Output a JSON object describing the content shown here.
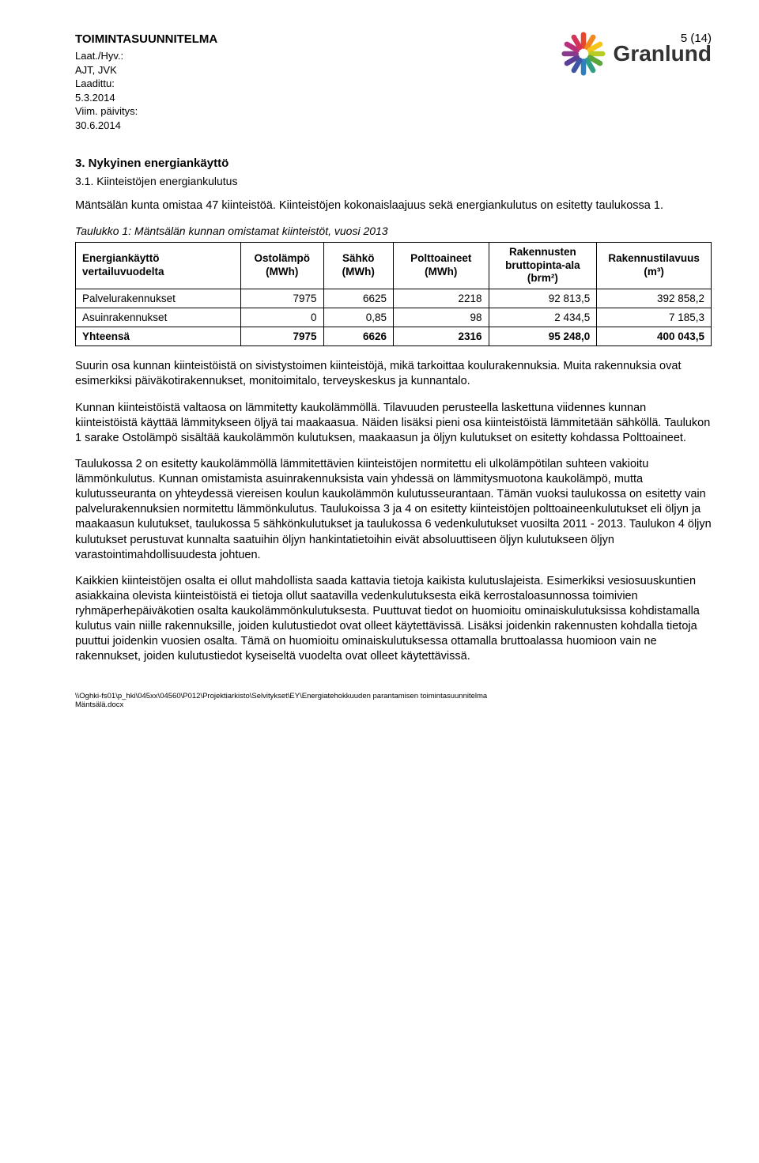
{
  "header": {
    "doc_title": "TOIMINTASUUNNITELMA",
    "meta_lines": [
      "Laat./Hyv.:",
      "AJT, JVK",
      "Laadittu:",
      "5.3.2014",
      "Viim. päivitys:",
      "30.6.2014"
    ],
    "page_number": "5 (14)",
    "brand": "Granlund"
  },
  "logo": {
    "stroke_colors": [
      "#e8452d",
      "#f08a1d",
      "#f6c515",
      "#b8cb27",
      "#5aa63a",
      "#2f9e83",
      "#2f7fbf",
      "#3c55a5",
      "#5a3f97",
      "#8a3a8c",
      "#b9307a",
      "#d53459"
    ]
  },
  "section": {
    "num_title": "3.    Nykyinen energiankäyttö",
    "sub_title": "3.1.  Kiinteistöjen energiankulutus"
  },
  "para1": "Mäntsälän kunta omistaa 47 kiinteistöä. Kiinteistöjen kokonaislaajuus sekä energiankulutus on esitetty taulukossa 1.",
  "table_caption": "Taulukko 1: Mäntsälän kunnan omistamat kiinteistöt, vuosi 2013",
  "table": {
    "headers": [
      "Energiankäyttö vertailuvuodelta",
      "Ostolämpö (MWh)",
      "Sähkö (MWh)",
      "Polttoaineet (MWh)",
      "Rakennusten bruttopinta-ala (brm²)",
      "Rakennustilavuus (m³)"
    ],
    "rows": [
      {
        "label": "Palvelurakennukset",
        "c1": "7975",
        "c2": "6625",
        "c3": "2218",
        "c4": "92 813,5",
        "c5": "392 858,2"
      },
      {
        "label": "Asuinrakennukset",
        "c1": "0",
        "c2": "0,85",
        "c3": "98",
        "c4": "2 434,5",
        "c5": "7 185,3"
      },
      {
        "label": "Yhteensä",
        "c1": "7975",
        "c2": "6626",
        "c3": "2316",
        "c4": "95 248,0",
        "c5": "400 043,5"
      }
    ],
    "col_widths": [
      "26%",
      "13%",
      "11%",
      "15%",
      "17%",
      "18%"
    ]
  },
  "para2": "Suurin osa kunnan kiinteistöistä on sivistystoimen kiinteistöjä, mikä tarkoittaa koulurakennuksia. Muita rakennuksia ovat esimerkiksi päiväkotirakennukset, monitoimitalo, terveyskeskus ja kunnantalo.",
  "para3": "Kunnan kiinteistöistä valtaosa on lämmitetty kaukolämmöllä. Tilavuuden perusteella laskettuna viidennes kunnan kiinteistöistä käyttää lämmitykseen öljyä tai maakaasua. Näiden lisäksi pieni osa kiinteistöistä lämmitetään sähköllä. Taulukon 1 sarake Ostolämpö sisältää kaukolämmön kulutuksen, maakaasun ja öljyn kulutukset on esitetty kohdassa Polttoaineet.",
  "para4": "Taulukossa 2 on esitetty kaukolämmöllä lämmitettävien kiinteistöjen normitettu eli ulkolämpötilan suhteen vakioitu lämmönkulutus. Kunnan omistamista asuinrakennuksista vain yhdessä on lämmitysmuotona kaukolämpö, mutta kulutusseuranta on yhteydessä viereisen koulun kaukolämmön kulutusseurantaan. Tämän vuoksi taulukossa on esitetty vain palvelurakennuksien normitettu lämmönkulutus. Taulukoissa 3 ja 4 on esitetty kiinteistöjen polttoaineenkulutukset eli öljyn ja maakaasun kulutukset, taulukossa 5 sähkönkulutukset ja taulukossa 6 vedenkulutukset vuosilta 2011 - 2013. Taulukon 4 öljyn kulutukset perustuvat kunnalta saatuihin öljyn hankintatietoihin eivät absoluuttiseen öljyn kulutukseen öljyn varastointimahdollisuudesta johtuen.",
  "para5": "Kaikkien kiinteistöjen osalta ei ollut mahdollista saada kattavia tietoja kaikista kulutuslajeista. Esimerkiksi vesiosuuskuntien asiakkaina olevista kiinteistöistä ei tietoja ollut saatavilla vedenkulutuksesta eikä kerrostaloasunnossa toimivien ryhmäperhepäiväkotien osalta kaukolämmönkulutuksesta. Puuttuvat tiedot on huomioitu ominaiskulutuksissa kohdistamalla kulutus vain niille rakennuksille, joiden kulutustiedot ovat olleet käytettävissä. Lisäksi joidenkin rakennusten kohdalla tietoja puuttui joidenkin vuosien osalta. Tämä on huomioitu ominaiskulutuksessa ottamalla bruttoalassa huomioon vain ne rakennukset, joiden kulutustiedot kyseiseltä vuodelta ovat olleet käytettävissä.",
  "footer": {
    "path": "\\\\Oghki-fs01\\p_hki\\045xx\\04560\\P012\\Projektiarkisto\\Selvitykset\\EY\\Energiatehokkuuden parantamisen toimintasuunnitelma",
    "file": "Mäntsälä.docx"
  }
}
